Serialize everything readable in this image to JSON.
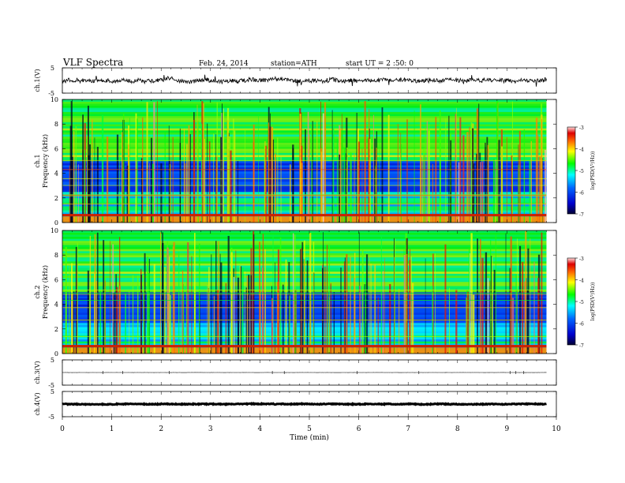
{
  "header": {
    "title": "VLF  Spectra",
    "date": "Feb. 24, 2014",
    "station": "station=ATH",
    "start": "start  UT  =   2  :50: 0"
  },
  "chart_data": [
    {
      "id": "ch1v",
      "type": "line",
      "ylabel": "ch.1(V)",
      "ylim": [
        -5,
        5
      ],
      "yticks": [
        "5",
        "-5"
      ],
      "xlim": [
        0,
        10
      ],
      "x_end": 9.8,
      "baseline": 0,
      "amplitude": 1.6,
      "grid": false
    },
    {
      "id": "ch1",
      "type": "heatmap",
      "ylabel": "ch.1\nFrequency  (kHz)",
      "ylim": [
        0,
        10
      ],
      "yticks": [
        "0",
        "2",
        "4",
        "6",
        "8",
        "10"
      ],
      "xlim": [
        0,
        10
      ],
      "x_end": 9.8,
      "colorbar": {
        "label": "log(PSD(V²/Hz))",
        "range": [
          -7,
          -3
        ],
        "ticks": [
          "-3",
          "-4",
          "-5",
          "-6",
          "-7"
        ]
      }
    },
    {
      "id": "ch2",
      "type": "heatmap",
      "ylabel": "ch.2\nFrequency  (kHz)",
      "ylim": [
        0,
        10
      ],
      "yticks": [
        "0",
        "2",
        "4",
        "6",
        "8",
        "10"
      ],
      "xlim": [
        0,
        10
      ],
      "x_end": 9.8,
      "colorbar": {
        "label": "log(PSD(V²/Hz))",
        "range": [
          -7,
          -3
        ],
        "ticks": [
          "-3",
          "-4",
          "-5",
          "-6",
          "-7"
        ]
      }
    },
    {
      "id": "ch3v",
      "type": "line",
      "ylabel": "ch.3(V)",
      "ylim": [
        -5,
        5
      ],
      "yticks": [
        "5",
        "-5"
      ],
      "xlim": [
        0,
        10
      ],
      "x_end": 9.8,
      "baseline": 0,
      "amplitude": 0.05
    },
    {
      "id": "ch4v",
      "type": "line",
      "ylabel": "ch.4(V)",
      "ylim": [
        -5,
        5
      ],
      "yticks": [
        "5",
        "-5"
      ],
      "xlim": [
        0,
        10
      ],
      "x_end": 9.8,
      "baseline": 0,
      "amplitude": 0.3
    }
  ],
  "xaxis": {
    "label": "Time  (min)",
    "ticks": [
      "0",
      "1",
      "2",
      "3",
      "4",
      "5",
      "6",
      "7",
      "8",
      "9",
      "10"
    ]
  }
}
